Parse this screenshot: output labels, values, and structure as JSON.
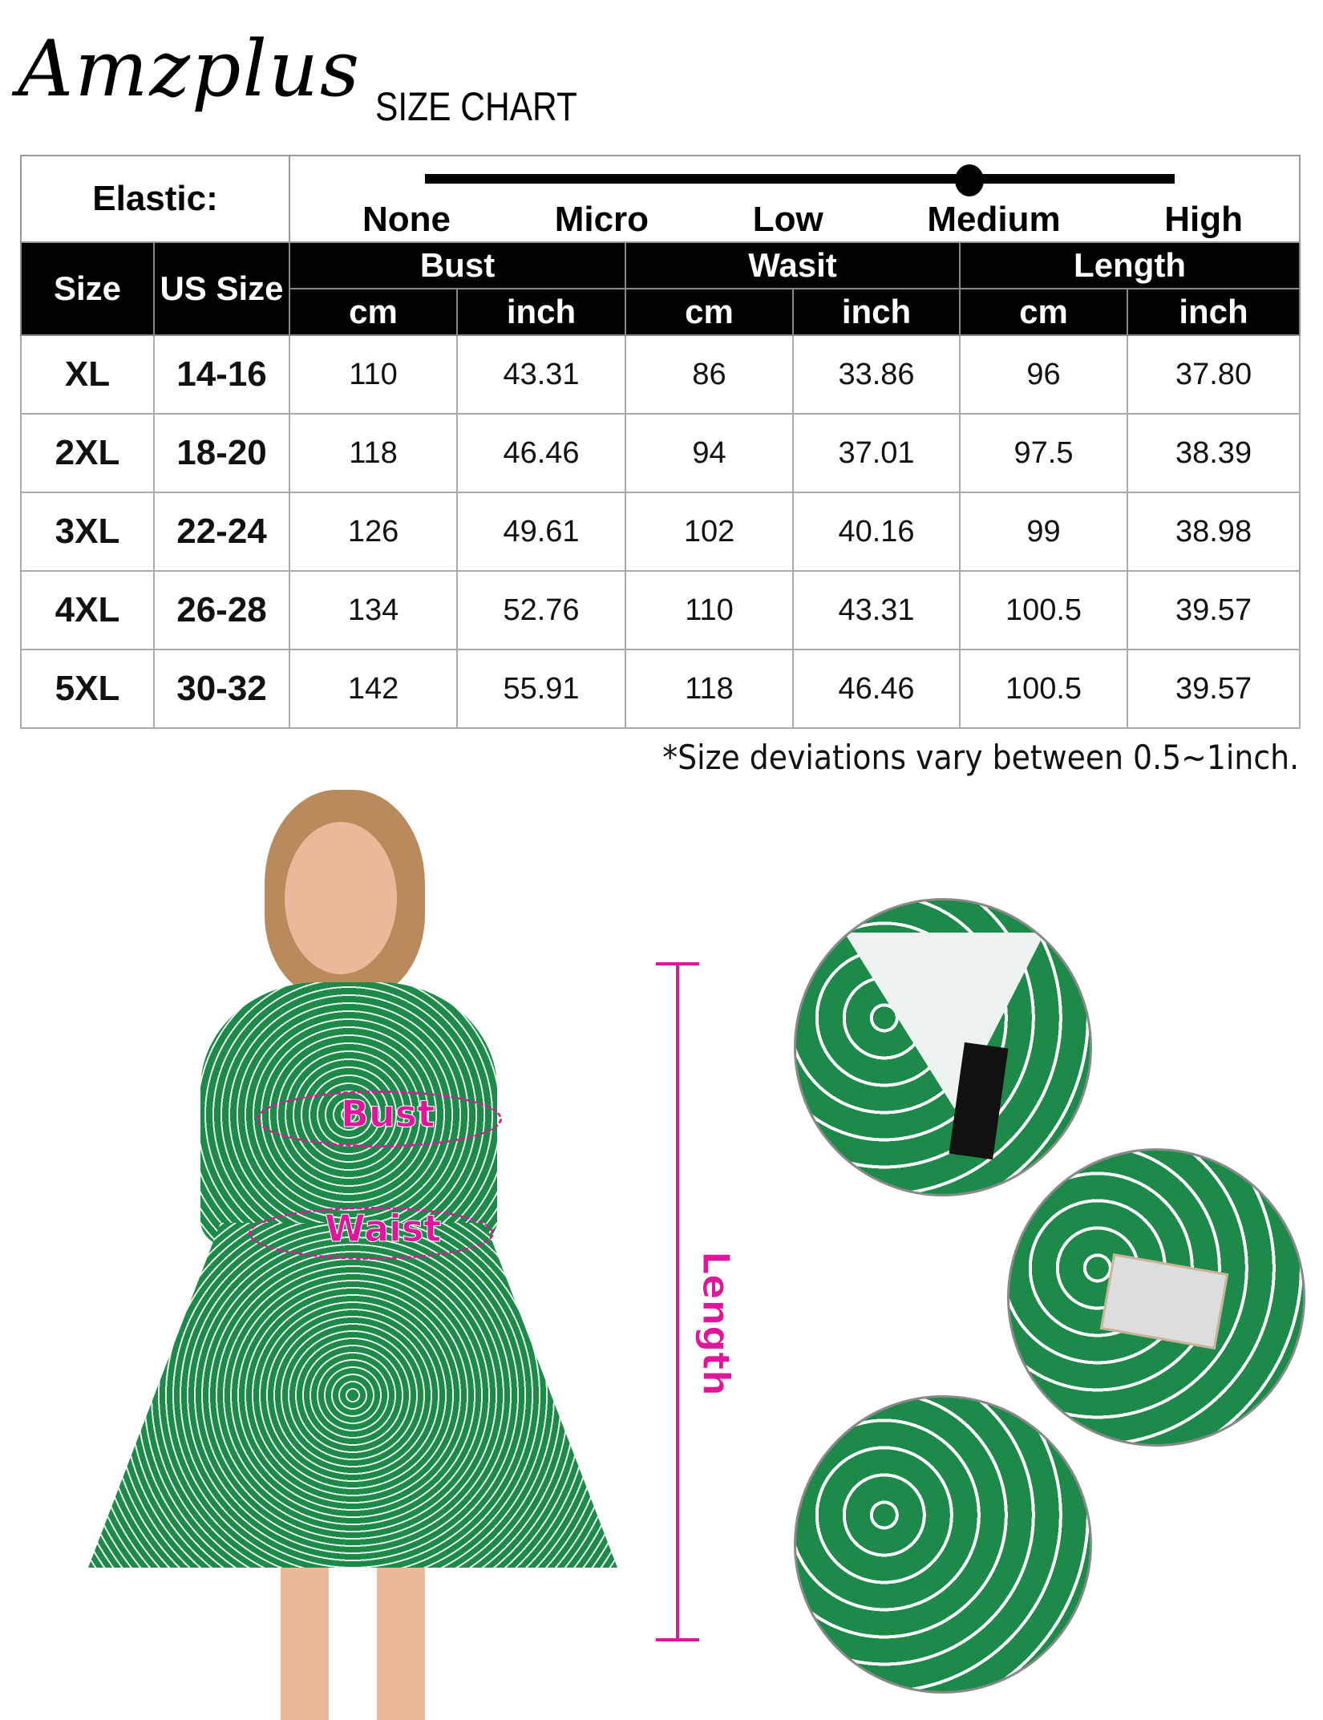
{
  "header": {
    "brand": "Amzplus",
    "title": "SIZE CHART"
  },
  "elastic": {
    "label": "Elastic:",
    "levels": [
      "None",
      "Micro",
      "Low",
      "Medium",
      "High"
    ],
    "selected": "Medium"
  },
  "table": {
    "col_size": "Size",
    "col_us": "US Size",
    "groups": [
      "Bust",
      "Wasit",
      "Length"
    ],
    "units": [
      "cm",
      "inch",
      "cm",
      "inch",
      "cm",
      "inch"
    ],
    "rows": [
      [
        "XL",
        "14-16",
        "110",
        "43.31",
        "86",
        "33.86",
        "96",
        "37.80"
      ],
      [
        "2XL",
        "18-20",
        "118",
        "46.46",
        "94",
        "37.01",
        "97.5",
        "38.39"
      ],
      [
        "3XL",
        "22-24",
        "126",
        "49.61",
        "102",
        "40.16",
        "99",
        "38.98"
      ],
      [
        "4XL",
        "26-28",
        "134",
        "52.76",
        "110",
        "43.31",
        "100.5",
        "39.57"
      ],
      [
        "5XL",
        "30-32",
        "142",
        "55.91",
        "118",
        "46.46",
        "100.5",
        "39.57"
      ]
    ]
  },
  "note": "*Size deviations vary between 0.5~1inch.",
  "measurements": {
    "bust": "Bust",
    "waist": "Waist",
    "length": "Length",
    "color": "#e0169a"
  },
  "tag_logo": "Amzplus"
}
